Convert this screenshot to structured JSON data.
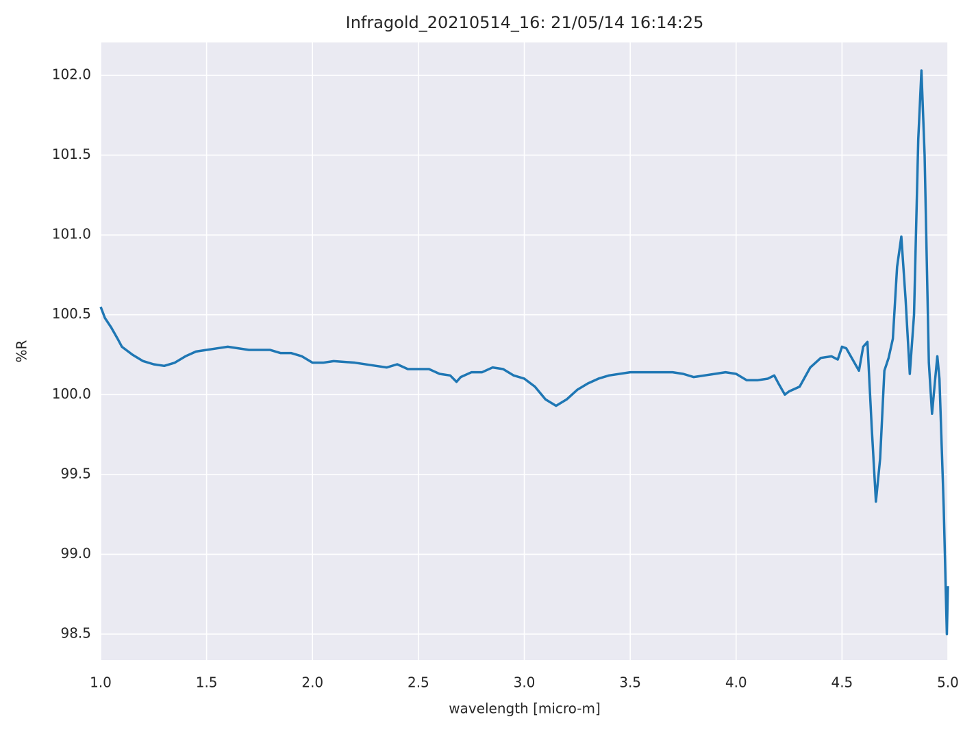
{
  "chart_data": {
    "type": "line",
    "title": "Infragold_20210514_16:  21/05/14 16:14:25",
    "x_label": "wavelength [micro-m]",
    "y_label": "%R",
    "x": [
      1.0,
      1.02,
      1.05,
      1.08,
      1.1,
      1.15,
      1.2,
      1.25,
      1.3,
      1.35,
      1.4,
      1.45,
      1.5,
      1.55,
      1.6,
      1.7,
      1.8,
      1.85,
      1.9,
      1.95,
      2.0,
      2.05,
      2.1,
      2.2,
      2.3,
      2.35,
      2.4,
      2.45,
      2.5,
      2.55,
      2.6,
      2.65,
      2.68,
      2.7,
      2.75,
      2.8,
      2.85,
      2.9,
      2.95,
      3.0,
      3.05,
      3.1,
      3.15,
      3.2,
      3.25,
      3.3,
      3.35,
      3.4,
      3.5,
      3.6,
      3.7,
      3.75,
      3.8,
      3.85,
      3.9,
      3.95,
      4.0,
      4.05,
      4.1,
      4.15,
      4.18,
      4.2,
      4.23,
      4.25,
      4.3,
      4.35,
      4.4,
      4.45,
      4.48,
      4.5,
      4.52,
      4.55,
      4.58,
      4.6,
      4.62,
      4.64,
      4.66,
      4.68,
      4.7,
      4.72,
      4.74,
      4.76,
      4.78,
      4.8,
      4.82,
      4.84,
      4.86,
      4.875,
      4.89,
      4.91,
      4.925,
      4.94,
      4.95,
      4.96,
      4.98,
      4.995,
      5.0
    ],
    "series": [
      {
        "color": "#1f77b4",
        "values": [
          100.55,
          100.48,
          100.42,
          100.35,
          100.3,
          100.25,
          100.21,
          100.19,
          100.18,
          100.2,
          100.24,
          100.27,
          100.28,
          100.29,
          100.3,
          100.28,
          100.28,
          100.26,
          100.26,
          100.24,
          100.2,
          100.2,
          100.21,
          100.2,
          100.18,
          100.17,
          100.19,
          100.16,
          100.16,
          100.16,
          100.13,
          100.12,
          100.08,
          100.11,
          100.14,
          100.14,
          100.17,
          100.16,
          100.12,
          100.1,
          100.05,
          99.97,
          99.93,
          99.97,
          100.03,
          100.07,
          100.1,
          100.12,
          100.14,
          100.14,
          100.14,
          100.13,
          100.11,
          100.12,
          100.13,
          100.14,
          100.13,
          100.09,
          100.09,
          100.1,
          100.12,
          100.07,
          100.0,
          100.02,
          100.05,
          100.17,
          100.23,
          100.24,
          100.22,
          100.3,
          100.29,
          100.22,
          100.15,
          100.3,
          100.33,
          99.8,
          99.33,
          99.6,
          100.15,
          100.23,
          100.35,
          100.8,
          100.99,
          100.6,
          100.13,
          100.5,
          101.6,
          102.03,
          101.5,
          100.2,
          99.88,
          100.1,
          100.24,
          100.1,
          99.3,
          98.5,
          98.8
        ]
      }
    ],
    "xlim": [
      1.0,
      5.0
    ],
    "ylim": [
      98.337,
      102.206
    ],
    "xticks": [
      {
        "value": 1,
        "label": "1.0"
      },
      1.5,
      {
        "value": 2,
        "label": "2.0"
      },
      2.5,
      {
        "value": 3,
        "label": "3.0"
      },
      3.5,
      {
        "value": 4,
        "label": "4.0"
      },
      4.5,
      {
        "value": 5,
        "label": "5.0"
      }
    ],
    "yticks": [
      98.5,
      {
        "value": 99,
        "label": "99.0"
      },
      99.5,
      {
        "value": 100,
        "label": "100.0"
      },
      100.5,
      {
        "value": 101,
        "label": "101.0"
      },
      101.5,
      {
        "value": 102,
        "label": "102.0"
      }
    ],
    "grid": true
  }
}
